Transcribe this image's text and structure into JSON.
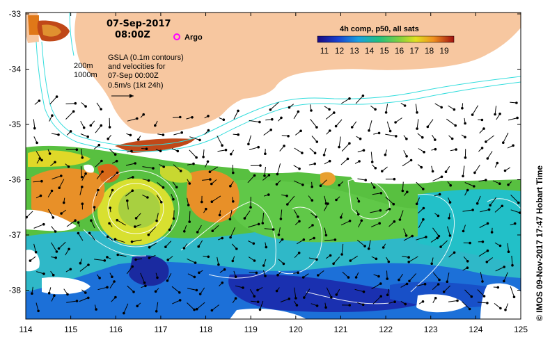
{
  "header": {
    "date": "07-Sep-2017",
    "time": "08:00Z",
    "argo_label": "Argo"
  },
  "annotations": {
    "contour_200": "200m",
    "contour_1000": "1000m",
    "gsla_line1": "GSLA (0.1m contours)",
    "gsla_line2": "and velocities for",
    "gsla_line3": "07-Sep 00:00Z",
    "velocity_scale": "0.5m/s (1kt 24h)"
  },
  "legend": {
    "title": "4h comp, p50, all sats",
    "ticks": [
      "11",
      "12",
      "13",
      "14",
      "15",
      "16",
      "17",
      "18",
      "19"
    ]
  },
  "axes": {
    "x_ticks": [
      "114",
      "115",
      "116",
      "117",
      "118",
      "119",
      "120",
      "121",
      "122",
      "123",
      "124",
      "125"
    ],
    "y_ticks": [
      "-33",
      "-34",
      "-35",
      "-36",
      "-37",
      "-38"
    ]
  },
  "credit": "© IMOS 09-Nov-2017 17:47 Hobart Time",
  "colors": {
    "land": "#f7c7a0",
    "cloud": "#ffffff",
    "bathymetry": "#33dddd",
    "argo": "#ff00ff"
  }
}
